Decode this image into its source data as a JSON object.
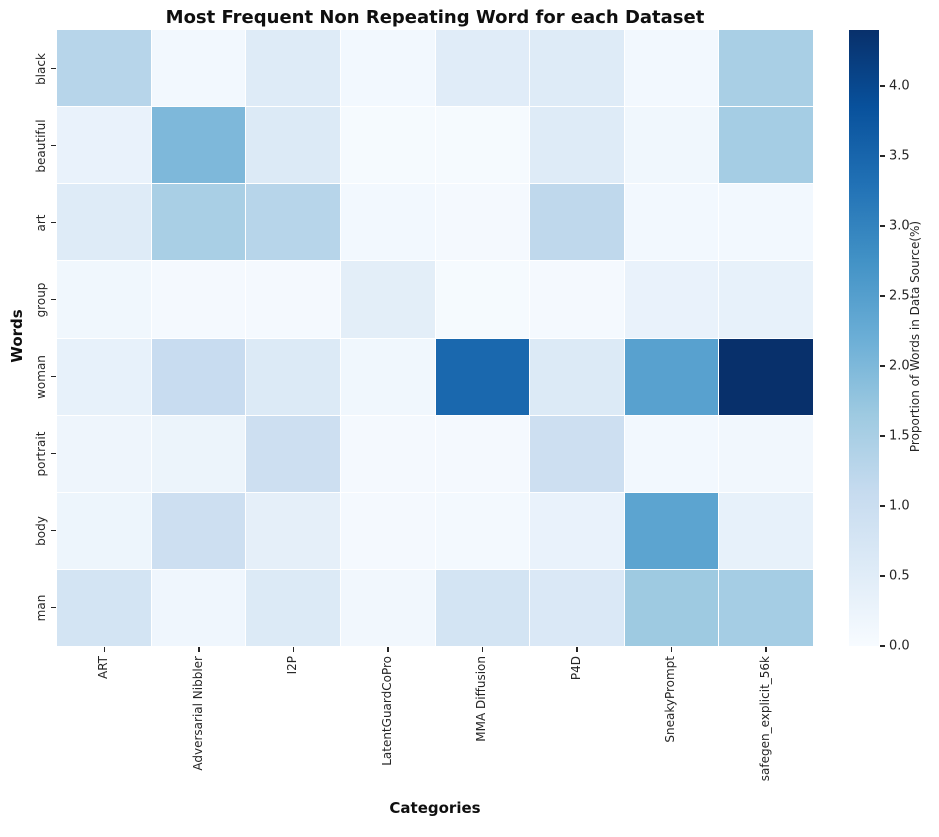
{
  "chart_data": {
    "type": "heatmap",
    "title": "Most Frequent Non Repeating Word for each Dataset",
    "xlabel": "Categories",
    "ylabel": "Words",
    "x_categories": [
      "ART",
      "Adversarial Nibbler",
      "I2P",
      "LatentGuardCoPro",
      "MMA Diffusion",
      "P4D",
      "SneakyPrompt",
      "safegen_explicit_56k"
    ],
    "y_categories": [
      "black",
      "beautiful",
      "art",
      "group",
      "woman",
      "portrait",
      "body",
      "man"
    ],
    "values": [
      [
        1.3,
        0.1,
        0.55,
        0.1,
        0.5,
        0.55,
        0.1,
        1.5
      ],
      [
        0.3,
        2.0,
        0.6,
        0.05,
        0.05,
        0.55,
        0.15,
        1.55
      ],
      [
        0.55,
        1.5,
        1.3,
        0.1,
        0.06,
        1.2,
        0.1,
        0.1
      ],
      [
        0.15,
        0.06,
        0.07,
        0.45,
        0.05,
        0.06,
        0.3,
        0.35
      ],
      [
        0.35,
        1.05,
        0.6,
        0.15,
        3.45,
        0.6,
        2.45,
        4.4
      ],
      [
        0.2,
        0.25,
        0.95,
        0.06,
        0.06,
        0.95,
        0.1,
        0.13
      ],
      [
        0.22,
        0.95,
        0.4,
        0.06,
        0.08,
        0.3,
        2.4,
        0.35
      ],
      [
        0.8,
        0.17,
        0.6,
        0.13,
        0.8,
        0.65,
        1.65,
        1.55
      ]
    ],
    "colormap": "Blues",
    "vmin": 0.0,
    "vmax": 4.4,
    "gridline_color": "#ffffff",
    "colorbar": {
      "label": "Proportion of Words in Data Source(%)",
      "ticks": [
        "0.0",
        "0.5",
        "1.0",
        "1.5",
        "2.0",
        "2.5",
        "3.0",
        "3.5",
        "4.0"
      ]
    }
  }
}
